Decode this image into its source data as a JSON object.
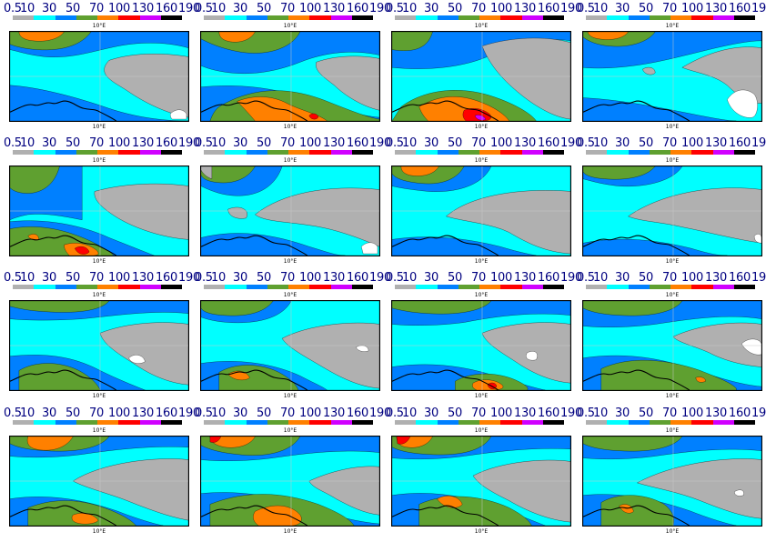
{
  "scale": {
    "labels": [
      "0.5",
      "10",
      "30",
      "50",
      "70",
      "100",
      "130",
      "160",
      "190"
    ],
    "colors": [
      "#b0b0b0",
      "#00ffff",
      "#0080ff",
      "#5fa030",
      "#ff8000",
      "#ff0000",
      "#d000ff",
      "#000000"
    ]
  },
  "axis_label": "10°E",
  "panel_count": 16
}
